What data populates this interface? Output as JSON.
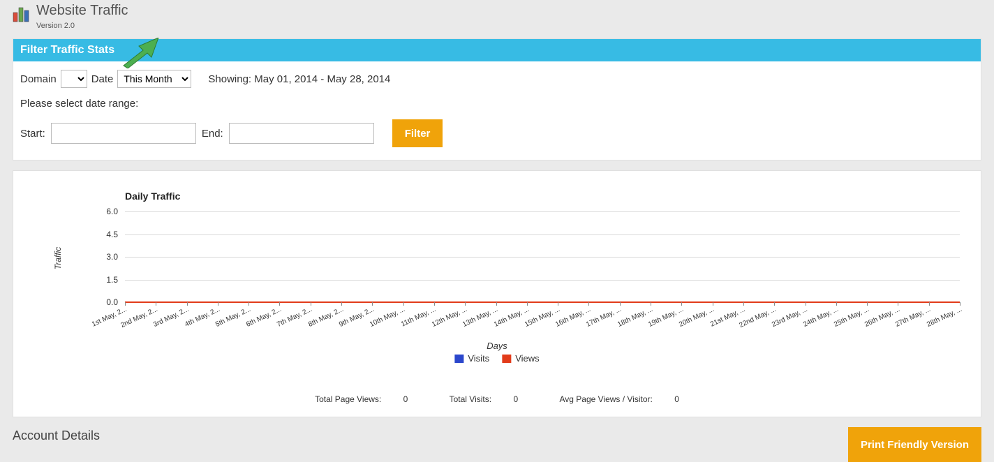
{
  "header": {
    "title": "Website Traffic",
    "version": "Version 2.0",
    "logo_colors": {
      "red": "#d94b3a",
      "green": "#6aa74f",
      "blue": "#3a6fb7"
    }
  },
  "filter_panel": {
    "title": "Filter Traffic Stats",
    "domain_label": "Domain",
    "date_label": "Date",
    "date_select_value": "This Month",
    "showing_text": "Showing: May 01, 2014 - May 28, 2014",
    "select_range_text": "Please select date range:",
    "start_label": "Start:",
    "end_label": "End:",
    "filter_button": "Filter",
    "arrow_color": "#4caf50"
  },
  "chart": {
    "type": "line",
    "title": "Daily Traffic",
    "yaxis_label": "Traffic",
    "xaxis_label": "Days",
    "ylim": [
      0,
      6
    ],
    "yticks": [
      0.0,
      1.5,
      3.0,
      4.5,
      6.0
    ],
    "grid_color": "#d9d9d9",
    "axis_color": "#888888",
    "background_color": "#ffffff",
    "legend": [
      {
        "label": "Visits",
        "color": "#2b47cc"
      },
      {
        "label": "Views",
        "color": "#e23b1a"
      }
    ],
    "x_categories": [
      "1st May, 2...",
      "2nd May, 2...",
      "3rd May, 2...",
      "4th May, 2...",
      "5th May, 2...",
      "6th May, 2...",
      "7th May, 2...",
      "8th May, 2...",
      "9th May, 2...",
      "10th May, ...",
      "11th May, ...",
      "12th May, ...",
      "13th May, ...",
      "14th May, ...",
      "15th May, ...",
      "16th May, ...",
      "17th May, ...",
      "18th May, ...",
      "19th May, ...",
      "20th May, ...",
      "21st May, ...",
      "22nd May, ...",
      "23rd May, ...",
      "24th May, ...",
      "25th May, ...",
      "26th May, ...",
      "27th May, ...",
      "28th May, ..."
    ],
    "series": {
      "visits": [
        0,
        0,
        0,
        0,
        0,
        0,
        0,
        0,
        0,
        0,
        0,
        0,
        0,
        0,
        0,
        0,
        0,
        0,
        0,
        0,
        0,
        0,
        0,
        0,
        0,
        0,
        0,
        0
      ],
      "views": [
        0,
        0,
        0,
        0,
        0,
        0,
        0,
        0,
        0,
        0,
        0,
        0,
        0,
        0,
        0,
        0,
        0,
        0,
        0,
        0,
        0,
        0,
        0,
        0,
        0,
        0,
        0,
        0
      ]
    }
  },
  "totals": {
    "page_views_label": "Total Page Views:",
    "page_views": 0,
    "visits_label": "Total Visits:",
    "visits": 0,
    "avg_label": "Avg Page Views / Visitor:",
    "avg": 0
  },
  "footer": {
    "account_details": "Account Details",
    "print_button": "Print Friendly Version"
  },
  "colors": {
    "page_bg": "#eaeaea",
    "panel_header_bg": "#37bbe4",
    "button_bg": "#f0a30a"
  }
}
